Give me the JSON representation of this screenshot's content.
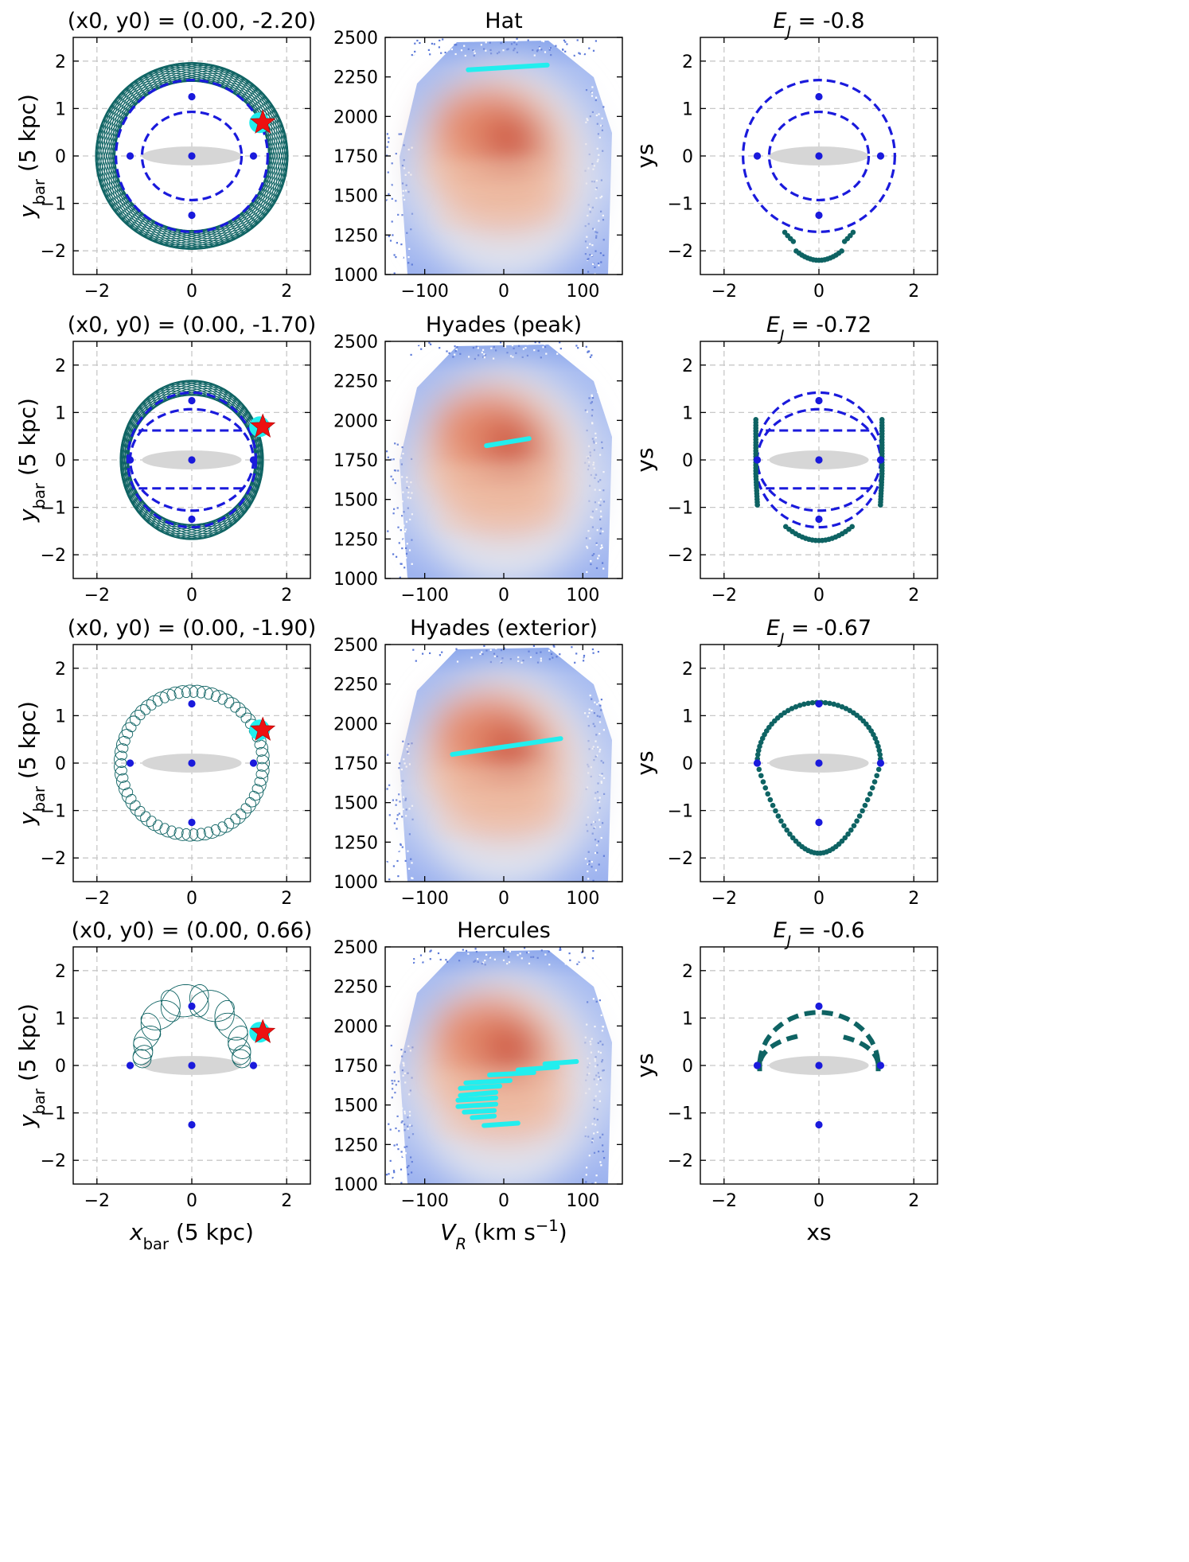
{
  "chart_data": {
    "type": "scatter",
    "description_rows": 4,
    "colors": {
      "orbit": "#0e6363",
      "dashed": "#1a1adc",
      "points": "#1a1adc",
      "star": "#ee1111",
      "star_halo": "#22eeee",
      "cyan": "#22eeee",
      "bar": "#d6d6d6",
      "grid": "#c8c8c8"
    },
    "shared": {
      "left_xlabel": "x",
      "left_xlabel_sub": "bar",
      "left_xlabel_unit": " (5 kpc)",
      "left_ylabel": "y",
      "left_ylabel_sub": "bar",
      "left_ylabel_unit": " (5 kpc)",
      "mid_xlabel": "V",
      "mid_xlabel_sub": "R",
      "mid_xlabel_unit": " (km s",
      "mid_xlabel_sup": "−1",
      "mid_xlabel_close": ")",
      "right_xlabel": "xs",
      "right_ylabel": "ys",
      "orbit_axis": {
        "xlim": [
          -2.5,
          2.5
        ],
        "ylim": [
          -2.5,
          2.5
        ],
        "xticks": [
          -2,
          0,
          2
        ],
        "yticks": [
          -2,
          -1,
          0,
          1,
          2
        ]
      },
      "hist_axis": {
        "xlim": [
          -150,
          150
        ],
        "ylim": [
          1000,
          2500
        ],
        "xticks": [
          -100,
          0,
          100
        ],
        "yticks": [
          1000,
          1250,
          1500,
          1750,
          2000,
          2250,
          2500
        ]
      },
      "lagrange_points": [
        [
          0,
          1.25
        ],
        [
          0,
          -1.25
        ],
        [
          -1.3,
          0
        ],
        [
          1.3,
          0
        ],
        [
          0,
          0
        ]
      ],
      "bar_ellipse": {
        "a": 1.05,
        "b": 0.2
      },
      "star_position": [
        1.48,
        0.7
      ]
    },
    "rows": [
      {
        "left_title": "(x0, y0) = (0.00, -2.20)",
        "mid_title": "Hat",
        "right_title_prefix": "E",
        "right_title_sub": "J",
        "right_title_value": " = -0.8",
        "dashed_curves": [
          {
            "rx": 1.6,
            "ry": 1.6
          },
          {
            "rx": 1.05,
            "ry": 0.93
          }
        ],
        "cyan_segments": [
          [
            [
              -45,
              2295
            ],
            [
              55,
              2325
            ]
          ]
        ]
      },
      {
        "left_title": "(x0, y0) = (0.00, -1.70)",
        "mid_title": "Hyades (peak)",
        "right_title_prefix": "E",
        "right_title_sub": "J",
        "right_title_value": " = -0.72",
        "dashed_curves": [
          {
            "rx": 1.35,
            "ry": 1.42
          },
          {
            "rx": 1.3,
            "ry": 1.07
          }
        ],
        "cyan_segments": [
          [
            [
              -22,
              1840
            ],
            [
              32,
              1885
            ]
          ]
        ]
      },
      {
        "left_title": "(x0, y0) = (0.00, -1.90)",
        "mid_title": "Hyades (exterior)",
        "right_title_prefix": "E",
        "right_title_sub": "J",
        "right_title_value": " = -0.67",
        "dashed_curves": [],
        "cyan_segments": [
          [
            [
              -65,
              1805
            ],
            [
              72,
              1905
            ]
          ]
        ]
      },
      {
        "left_title": "(x0, y0) = (0.00, 0.66)",
        "mid_title": "Hercules",
        "right_title_prefix": "E",
        "right_title_sub": "J",
        "right_title_value": " = -0.6",
        "dashed_curves": [],
        "cyan_segments": [
          [
            [
              52,
              1760
            ],
            [
              92,
              1775
            ]
          ],
          [
            [
              18,
              1722
            ],
            [
              68,
              1740
            ]
          ],
          [
            [
              -18,
              1690
            ],
            [
              38,
              1705
            ]
          ],
          [
            [
              -48,
              1640
            ],
            [
              8,
              1655
            ]
          ],
          [
            [
              -55,
              1605
            ],
            [
              -5,
              1620
            ]
          ],
          [
            [
              -55,
              1560
            ],
            [
              -10,
              1580
            ]
          ],
          [
            [
              -58,
              1530
            ],
            [
              -10,
              1545
            ]
          ],
          [
            [
              -58,
              1490
            ],
            [
              -10,
              1505
            ]
          ],
          [
            [
              -50,
              1455
            ],
            [
              -12,
              1465
            ]
          ],
          [
            [
              -40,
              1420
            ],
            [
              -12,
              1430
            ]
          ],
          [
            [
              -25,
              1370
            ],
            [
              18,
              1385
            ]
          ]
        ]
      }
    ]
  }
}
